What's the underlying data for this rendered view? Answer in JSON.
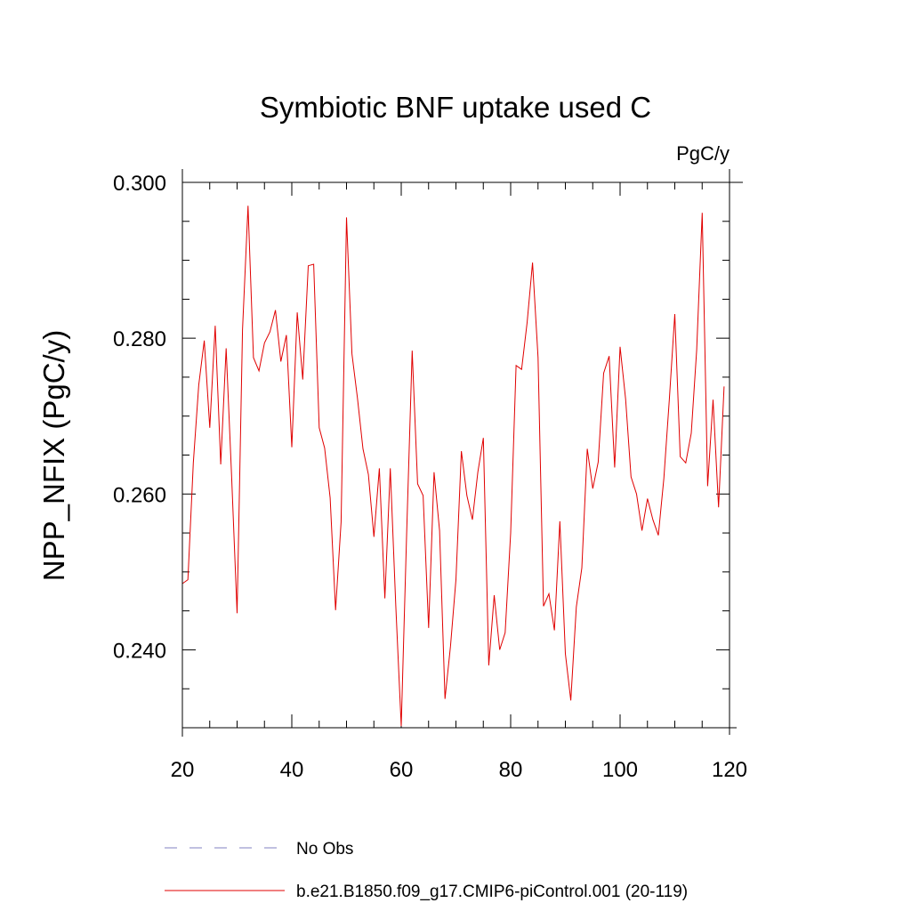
{
  "chart_data": {
    "type": "line",
    "title": "Symbiotic BNF uptake used C",
    "units": "PgC/y",
    "xlabel": "",
    "ylabel": "NPP_NFIX  (PgC/y)",
    "xlim": [
      20,
      120
    ],
    "ylim": [
      0.23,
      0.3
    ],
    "xticks": [
      20,
      40,
      60,
      80,
      100,
      120
    ],
    "xtick_labels": [
      "20",
      "40",
      "60",
      "80",
      "100",
      "120"
    ],
    "yticks": [
      0.24,
      0.26,
      0.28,
      0.3
    ],
    "ytick_labels": [
      "0.240",
      "0.260",
      "0.280",
      "0.300"
    ],
    "grid": false,
    "legend": [
      {
        "label": "No Obs",
        "style": "dashed",
        "color": "#8080c0"
      },
      {
        "label": "b.e21.B1850.f09_g17.CMIP6-piControl.001 (20-119)",
        "style": "solid",
        "color": "#e00000"
      }
    ],
    "series": [
      {
        "name": "b.e21.B1850.f09_g17.CMIP6-piControl.001 (20-119)",
        "color": "#e00000",
        "x": [
          20,
          21,
          22,
          23,
          24,
          25,
          26,
          27,
          28,
          29,
          30,
          31,
          32,
          33,
          34,
          35,
          36,
          37,
          38,
          39,
          40,
          41,
          42,
          43,
          44,
          45,
          46,
          47,
          48,
          49,
          50,
          51,
          52,
          53,
          54,
          55,
          56,
          57,
          58,
          59,
          60,
          61,
          62,
          63,
          64,
          65,
          66,
          67,
          68,
          69,
          70,
          71,
          72,
          73,
          74,
          75,
          76,
          77,
          78,
          79,
          80,
          81,
          82,
          83,
          84,
          85,
          86,
          87,
          88,
          89,
          90,
          91,
          92,
          93,
          94,
          95,
          96,
          97,
          98,
          99,
          100,
          101,
          102,
          103,
          104,
          105,
          106,
          107,
          108,
          109,
          110,
          111,
          112,
          113,
          114,
          115,
          116,
          117,
          118,
          119
        ],
        "y": [
          0.2485,
          0.249,
          0.264,
          0.274,
          0.2797,
          0.2685,
          0.2816,
          0.2638,
          0.2787,
          0.2621,
          0.2447,
          0.2811,
          0.297,
          0.2775,
          0.2758,
          0.2794,
          0.2808,
          0.2836,
          0.277,
          0.2804,
          0.266,
          0.2833,
          0.2747,
          0.2893,
          0.2895,
          0.2685,
          0.2659,
          0.2595,
          0.2451,
          0.2564,
          0.2955,
          0.278,
          0.2723,
          0.2658,
          0.2625,
          0.2545,
          0.2633,
          0.2466,
          0.2633,
          0.2456,
          0.2302,
          0.255,
          0.2784,
          0.2613,
          0.2598,
          0.2428,
          0.2628,
          0.2553,
          0.2337,
          0.2405,
          0.249,
          0.2655,
          0.2598,
          0.2567,
          0.2628,
          0.2672,
          0.238,
          0.247,
          0.24,
          0.2422,
          0.255,
          0.2765,
          0.276,
          0.282,
          0.2897,
          0.2775,
          0.2456,
          0.2472,
          0.2425,
          0.2565,
          0.2395,
          0.2335,
          0.2455,
          0.2505,
          0.2658,
          0.2607,
          0.2641,
          0.2755,
          0.2777,
          0.2634,
          0.2789,
          0.2722,
          0.2622,
          0.26,
          0.2553,
          0.2594,
          0.2567,
          0.2547,
          0.262,
          0.2722,
          0.2831,
          0.2648,
          0.264,
          0.2678,
          0.2785,
          0.2961,
          0.261,
          0.2721,
          0.2583,
          0.2738
        ]
      }
    ]
  }
}
